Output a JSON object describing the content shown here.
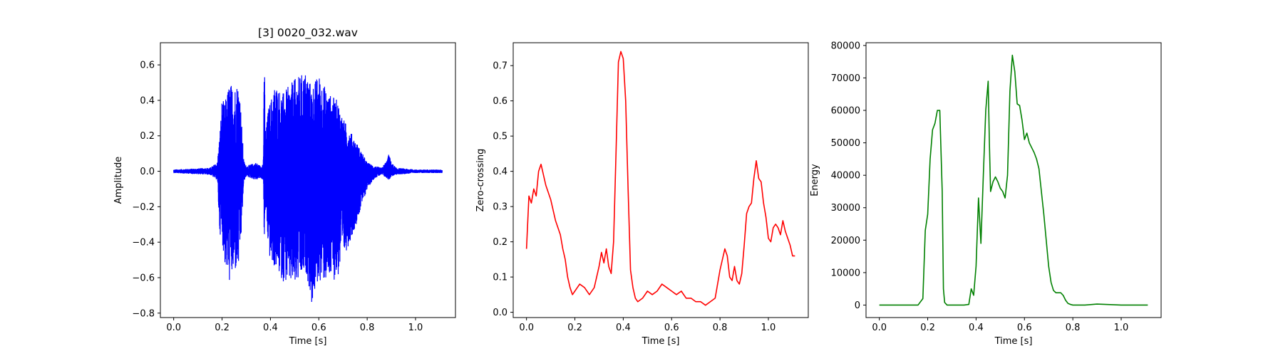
{
  "figure": {
    "background": "#ffffff"
  },
  "chart_data": [
    {
      "type": "line",
      "title": "[3] 0020_032.wav",
      "xlabel": "Time [s]",
      "ylabel": "Amplitude",
      "color": "#0000ff",
      "xlim": [
        -0.055,
        1.165
      ],
      "ylim": [
        -0.825,
        0.725
      ],
      "xticks": [
        0.0,
        0.2,
        0.4,
        0.6,
        0.8,
        1.0
      ],
      "xtick_labels": [
        "0.0",
        "0.2",
        "0.4",
        "0.6",
        "0.8",
        "1.0"
      ],
      "yticks": [
        0.6,
        0.4,
        0.2,
        0.0,
        -0.2,
        -0.4,
        -0.6,
        -0.8
      ],
      "ytick_labels": [
        "0.6",
        "0.4",
        "0.2",
        "0.0",
        "−0.2",
        "−0.4",
        "−0.6",
        "−0.8"
      ],
      "waveform_envelope": {
        "x": [
          0.0,
          0.15,
          0.18,
          0.19,
          0.2,
          0.21,
          0.23,
          0.25,
          0.27,
          0.28,
          0.29,
          0.3,
          0.32,
          0.34,
          0.36,
          0.37,
          0.375,
          0.38,
          0.39,
          0.4,
          0.42,
          0.45,
          0.5,
          0.55,
          0.57,
          0.6,
          0.64,
          0.68,
          0.7,
          0.75,
          0.8,
          0.83,
          0.86,
          0.88,
          0.89,
          0.9,
          0.92,
          1.0,
          1.11
        ],
        "upper": [
          0.01,
          0.02,
          0.05,
          0.2,
          0.42,
          0.38,
          0.5,
          0.48,
          0.52,
          0.3,
          0.06,
          0.03,
          0.04,
          0.05,
          0.03,
          0.05,
          0.68,
          0.2,
          0.35,
          0.4,
          0.5,
          0.44,
          0.52,
          0.57,
          0.48,
          0.55,
          0.44,
          0.4,
          0.3,
          0.18,
          0.05,
          0.03,
          0.02,
          0.06,
          0.1,
          0.05,
          0.02,
          0.01,
          0.01
        ],
        "lower": [
          -0.01,
          -0.02,
          -0.05,
          -0.35,
          -0.38,
          -0.52,
          -0.63,
          -0.58,
          -0.55,
          -0.36,
          -0.06,
          -0.03,
          -0.04,
          -0.05,
          -0.04,
          -0.05,
          -0.44,
          -0.2,
          -0.42,
          -0.52,
          -0.55,
          -0.62,
          -0.66,
          -0.58,
          -0.76,
          -0.62,
          -0.63,
          -0.6,
          -0.5,
          -0.32,
          -0.1,
          -0.04,
          -0.02,
          -0.04,
          -0.05,
          -0.03,
          -0.02,
          -0.01,
          -0.01
        ]
      }
    },
    {
      "type": "line",
      "title": "",
      "xlabel": "Time [s]",
      "ylabel": "Zero-crossing",
      "color": "#ff0000",
      "xlim": [
        -0.055,
        1.165
      ],
      "ylim": [
        -0.015,
        0.765
      ],
      "xticks": [
        0.0,
        0.2,
        0.4,
        0.6,
        0.8,
        1.0
      ],
      "xtick_labels": [
        "0.0",
        "0.2",
        "0.4",
        "0.6",
        "0.8",
        "1.0"
      ],
      "yticks": [
        0.0,
        0.1,
        0.2,
        0.3,
        0.4,
        0.5,
        0.6,
        0.7
      ],
      "ytick_labels": [
        "0.0",
        "0.1",
        "0.2",
        "0.3",
        "0.4",
        "0.5",
        "0.6",
        "0.7"
      ],
      "series": [
        {
          "x": [
            0.0,
            0.01,
            0.02,
            0.03,
            0.04,
            0.05,
            0.06,
            0.07,
            0.08,
            0.1,
            0.12,
            0.14,
            0.15,
            0.16,
            0.17,
            0.18,
            0.19,
            0.2,
            0.21,
            0.22,
            0.24,
            0.26,
            0.28,
            0.3,
            0.31,
            0.32,
            0.33,
            0.34,
            0.35,
            0.36,
            0.37,
            0.38,
            0.39,
            0.4,
            0.41,
            0.42,
            0.43,
            0.44,
            0.45,
            0.46,
            0.48,
            0.5,
            0.52,
            0.54,
            0.56,
            0.58,
            0.6,
            0.62,
            0.64,
            0.66,
            0.68,
            0.7,
            0.72,
            0.74,
            0.76,
            0.78,
            0.8,
            0.82,
            0.83,
            0.84,
            0.85,
            0.86,
            0.87,
            0.88,
            0.89,
            0.9,
            0.91,
            0.92,
            0.93,
            0.94,
            0.95,
            0.96,
            0.97,
            0.98,
            0.99,
            1.0,
            1.01,
            1.02,
            1.03,
            1.04,
            1.05,
            1.06,
            1.07,
            1.08,
            1.09,
            1.1,
            1.11
          ],
          "y": [
            0.18,
            0.33,
            0.31,
            0.35,
            0.33,
            0.4,
            0.42,
            0.39,
            0.36,
            0.32,
            0.26,
            0.22,
            0.18,
            0.15,
            0.1,
            0.07,
            0.05,
            0.06,
            0.07,
            0.08,
            0.07,
            0.05,
            0.07,
            0.13,
            0.17,
            0.14,
            0.18,
            0.13,
            0.11,
            0.2,
            0.45,
            0.71,
            0.74,
            0.72,
            0.6,
            0.35,
            0.12,
            0.07,
            0.04,
            0.03,
            0.04,
            0.06,
            0.05,
            0.06,
            0.08,
            0.07,
            0.06,
            0.05,
            0.06,
            0.04,
            0.04,
            0.03,
            0.03,
            0.02,
            0.03,
            0.04,
            0.12,
            0.18,
            0.16,
            0.1,
            0.09,
            0.13,
            0.09,
            0.08,
            0.11,
            0.19,
            0.28,
            0.3,
            0.31,
            0.38,
            0.43,
            0.38,
            0.37,
            0.31,
            0.27,
            0.21,
            0.2,
            0.24,
            0.25,
            0.24,
            0.22,
            0.26,
            0.23,
            0.21,
            0.19,
            0.16,
            0.16
          ]
        }
      ]
    },
    {
      "type": "line",
      "title": "",
      "xlabel": "Time [s]",
      "ylabel": "Energy",
      "color": "#008000",
      "xlim": [
        -0.055,
        1.165
      ],
      "ylim": [
        -3850,
        80850
      ],
      "xticks": [
        0.0,
        0.2,
        0.4,
        0.6,
        0.8,
        1.0
      ],
      "xtick_labels": [
        "0.0",
        "0.2",
        "0.4",
        "0.6",
        "0.8",
        "1.0"
      ],
      "yticks": [
        0,
        10000,
        20000,
        30000,
        40000,
        50000,
        60000,
        70000,
        80000
      ],
      "ytick_labels": [
        "0",
        "10000",
        "20000",
        "30000",
        "40000",
        "50000",
        "60000",
        "70000",
        "80000"
      ],
      "series": [
        {
          "x": [
            0.0,
            0.16,
            0.18,
            0.19,
            0.2,
            0.21,
            0.22,
            0.23,
            0.24,
            0.25,
            0.26,
            0.265,
            0.27,
            0.28,
            0.3,
            0.35,
            0.37,
            0.38,
            0.39,
            0.4,
            0.41,
            0.42,
            0.43,
            0.44,
            0.45,
            0.455,
            0.46,
            0.47,
            0.48,
            0.49,
            0.5,
            0.51,
            0.52,
            0.53,
            0.54,
            0.55,
            0.56,
            0.57,
            0.58,
            0.59,
            0.6,
            0.61,
            0.62,
            0.63,
            0.64,
            0.65,
            0.66,
            0.67,
            0.68,
            0.69,
            0.7,
            0.71,
            0.72,
            0.73,
            0.74,
            0.75,
            0.76,
            0.77,
            0.78,
            0.79,
            0.8,
            0.82,
            0.85,
            0.9,
            1.0,
            1.11
          ],
          "y": [
            0,
            0,
            2000,
            23000,
            28000,
            45000,
            54000,
            56000,
            60000,
            60000,
            35000,
            5000,
            800,
            0,
            0,
            0,
            200,
            5000,
            3000,
            12000,
            33000,
            19000,
            40000,
            60000,
            69000,
            50000,
            35000,
            38000,
            39500,
            38000,
            36000,
            35000,
            33000,
            40000,
            66000,
            77000,
            72000,
            62000,
            61500,
            57000,
            51000,
            53000,
            50000,
            48500,
            47000,
            45000,
            42000,
            35000,
            28000,
            20000,
            12000,
            7000,
            4500,
            3800,
            3800,
            3800,
            3000,
            1500,
            500,
            200,
            0,
            0,
            0,
            300,
            0,
            0
          ]
        }
      ]
    }
  ]
}
